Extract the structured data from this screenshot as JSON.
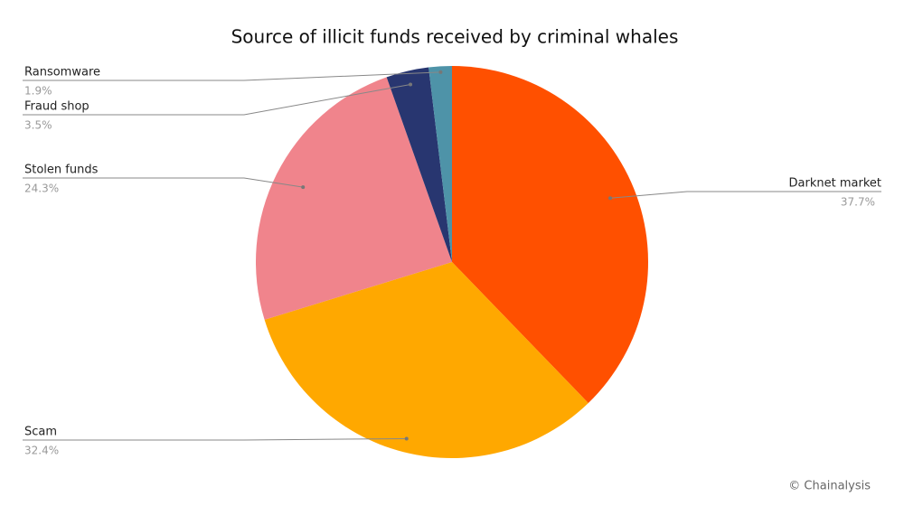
{
  "chart_data": {
    "type": "pie",
    "title": "Source of illicit funds received by criminal whales",
    "categories": [
      "Darknet market",
      "Scam",
      "Stolen funds",
      "Fraud shop",
      "Ransomware"
    ],
    "values": [
      37.7,
      32.4,
      24.3,
      3.5,
      1.9
    ],
    "value_labels": [
      "37.7%",
      "32.4%",
      "24.3%",
      "3.5%",
      "1.9%"
    ],
    "colors": [
      "#ff5000",
      "#ffa800",
      "#f0848c",
      "#283670",
      "#4e93a8"
    ],
    "credit": "© Chainalysis"
  }
}
